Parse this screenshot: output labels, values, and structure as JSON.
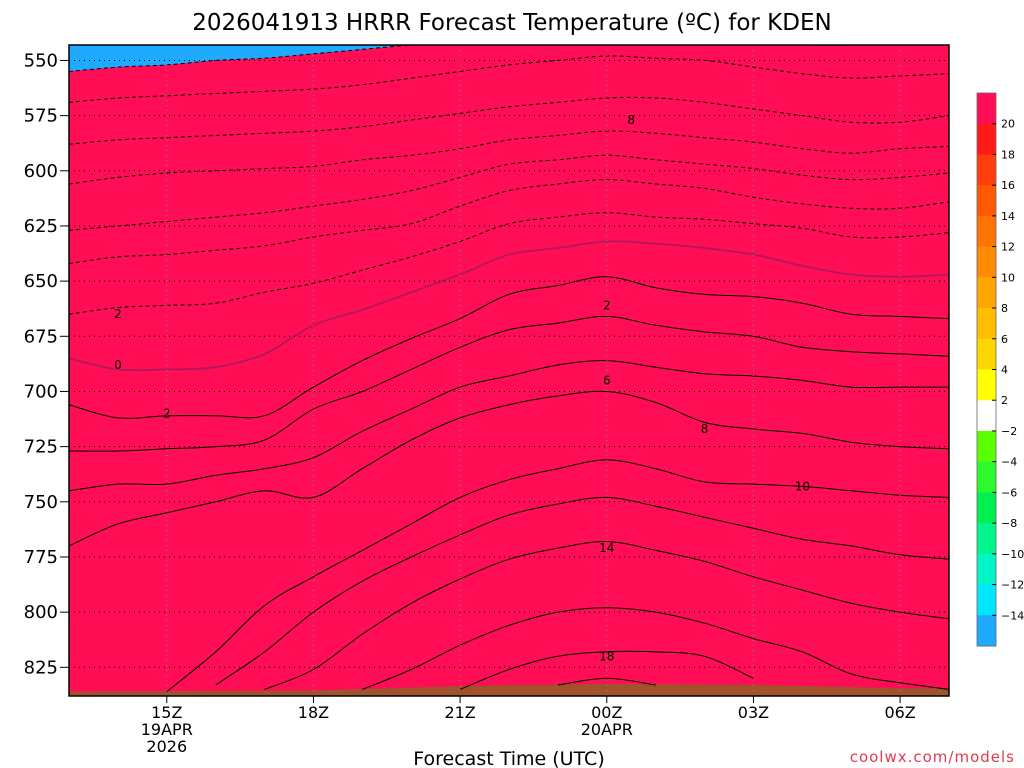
{
  "chart_data": {
    "type": "heatmap",
    "title": "2026041913 HRRR Forecast Temperature (ºC) for KDEN",
    "xlabel": "Forecast Time (UTC)",
    "ylabel": "",
    "credit": "coolwx.com/models",
    "colors": {
      "credit": "#e03a4e",
      "ground": "#a0522d",
      "freezing_line": "#b0175c"
    },
    "x_range_hours": [
      13,
      31
    ],
    "y_range_hpa": [
      543,
      838
    ],
    "y_axis_inverted": true,
    "grid": true,
    "legend_placement": "right (vertical colorbar)",
    "x_ticks": [
      {
        "hour": 15,
        "lines": [
          "15Z",
          "19APR",
          "2026"
        ]
      },
      {
        "hour": 18,
        "lines": [
          "18Z"
        ]
      },
      {
        "hour": 21,
        "lines": [
          "21Z"
        ]
      },
      {
        "hour": 24,
        "lines": [
          "00Z",
          "20APR"
        ]
      },
      {
        "hour": 27,
        "lines": [
          "03Z"
        ]
      },
      {
        "hour": 30,
        "lines": [
          "06Z"
        ]
      }
    ],
    "y_ticks": [
      550,
      575,
      600,
      625,
      650,
      675,
      700,
      725,
      750,
      775,
      800,
      825
    ],
    "colorbar": {
      "labels": [
        "20",
        "18",
        "16",
        "14",
        "12",
        "10",
        "8",
        "6",
        "4",
        "2",
        "−2",
        "−4",
        "−6",
        "−8",
        "−10",
        "−12",
        "−14"
      ],
      "colors": [
        "#ff0d55",
        "#ff1a1a",
        "#ff3d0d",
        "#ff5a00",
        "#ff7300",
        "#ff8c00",
        "#ffa500",
        "#ffbe00",
        "#ffd700",
        "#ffff00",
        "#ffffff",
        "#5aff00",
        "#2cfa2c",
        "#00f050",
        "#00f58c",
        "#00f5c8",
        "#00e6ff",
        "#1eaaff"
      ]
    },
    "time_points": [
      13,
      14,
      15,
      16,
      17,
      18,
      19,
      20,
      21,
      22,
      23,
      24,
      25,
      26,
      27,
      28,
      29,
      30,
      31
    ],
    "isotherms": [
      {
        "value": 20,
        "p": [
          null,
          null,
          null,
          null,
          null,
          null,
          null,
          null,
          null,
          null,
          833,
          830,
          833,
          null,
          null,
          null,
          null,
          null,
          null
        ]
      },
      {
        "value": 18,
        "p": [
          null,
          null,
          null,
          null,
          null,
          null,
          null,
          null,
          835,
          826,
          820,
          818,
          818,
          820,
          830,
          null,
          null,
          null,
          null
        ]
      },
      {
        "value": 16,
        "p": [
          null,
          null,
          null,
          null,
          null,
          null,
          835,
          826,
          815,
          806,
          800,
          798,
          800,
          805,
          812,
          818,
          828,
          832,
          835
        ]
      },
      {
        "value": 14,
        "p": [
          null,
          null,
          null,
          null,
          835,
          826,
          810,
          796,
          785,
          776,
          771,
          768,
          772,
          777,
          784,
          790,
          796,
          800,
          803
        ]
      },
      {
        "value": 12,
        "p": [
          null,
          null,
          null,
          833,
          818,
          800,
          786,
          775,
          765,
          756,
          751,
          748,
          752,
          757,
          762,
          767,
          770,
          774,
          776
        ]
      },
      {
        "value": 10,
        "p": [
          null,
          null,
          836,
          818,
          797,
          784,
          772,
          760,
          748,
          740,
          735,
          731,
          735,
          741,
          742,
          743,
          745,
          747,
          748
        ]
      },
      {
        "value": 8,
        "p": [
          770,
          760,
          755,
          750,
          745,
          748,
          735,
          722,
          712,
          706,
          702,
          700,
          705,
          714,
          717,
          719,
          723,
          725,
          726
        ]
      },
      {
        "value": 6,
        "p": [
          745,
          742,
          742,
          738,
          735,
          730,
          718,
          708,
          698,
          693,
          688,
          686,
          689,
          692,
          693,
          695,
          698,
          698,
          698
        ]
      },
      {
        "value": 4,
        "p": [
          727,
          727,
          726,
          725,
          722,
          708,
          700,
          690,
          680,
          672,
          669,
          666,
          670,
          673,
          675,
          680,
          682,
          683,
          684
        ]
      },
      {
        "value": 2,
        "p": [
          706,
          712,
          711,
          711,
          711,
          698,
          686,
          676,
          667,
          656,
          652,
          648,
          653,
          656,
          657,
          660,
          665,
          666,
          667
        ]
      },
      {
        "value": 0,
        "p": [
          685,
          690,
          690,
          689,
          683,
          670,
          663,
          655,
          647,
          638,
          635,
          632,
          633,
          635,
          638,
          643,
          647,
          648,
          647
        ]
      },
      {
        "value": -2,
        "p": [
          665,
          662,
          661,
          660,
          655,
          651,
          645,
          639,
          632,
          624,
          621,
          619,
          621,
          622,
          624,
          626,
          630,
          630,
          628
        ]
      },
      {
        "value": -4,
        "p": [
          642,
          639,
          638,
          636,
          634,
          630,
          627,
          624,
          616,
          609,
          606,
          604,
          606,
          608,
          612,
          615,
          617,
          617,
          614
        ]
      },
      {
        "value": -6,
        "p": [
          627,
          625,
          623,
          621,
          619,
          616,
          613,
          609,
          603,
          597,
          595,
          593,
          595,
          597,
          599,
          602,
          604,
          603,
          601
        ]
      },
      {
        "value": -8,
        "p": [
          606,
          603,
          601,
          600,
          599,
          598,
          595,
          593,
          590,
          586,
          584,
          582,
          583,
          585,
          587,
          590,
          592,
          590,
          589
        ]
      },
      {
        "value": -10,
        "p": [
          588,
          586,
          585,
          584,
          583,
          582,
          580,
          577,
          574,
          571,
          569,
          567,
          567,
          569,
          572,
          575,
          578,
          578,
          575
        ]
      },
      {
        "value": -12,
        "p": [
          569,
          567,
          566,
          565,
          564,
          563,
          561,
          558,
          555,
          552,
          550,
          548,
          549,
          550,
          553,
          556,
          558,
          557,
          556
        ]
      },
      {
        "value": -14,
        "p": [
          555,
          553,
          552,
          550,
          549,
          547,
          545,
          543,
          542,
          540,
          538,
          537,
          538,
          540,
          542,
          543,
          543,
          542,
          541
        ]
      }
    ],
    "contour_labels": [
      {
        "text": "8",
        "hour": 24.5,
        "p": 577
      },
      {
        "text": "2",
        "hour": 14,
        "p": 665
      },
      {
        "text": "0",
        "hour": 14,
        "p": 688
      },
      {
        "text": "2",
        "hour": 15,
        "p": 710
      },
      {
        "text": "2",
        "hour": 24,
        "p": 661
      },
      {
        "text": "6",
        "hour": 24,
        "p": 695
      },
      {
        "text": "8",
        "hour": 26,
        "p": 717
      },
      {
        "text": "10",
        "hour": 28,
        "p": 743
      },
      {
        "text": "14",
        "hour": 24,
        "p": 771
      },
      {
        "text": "18",
        "hour": 24,
        "p": 820
      }
    ]
  }
}
